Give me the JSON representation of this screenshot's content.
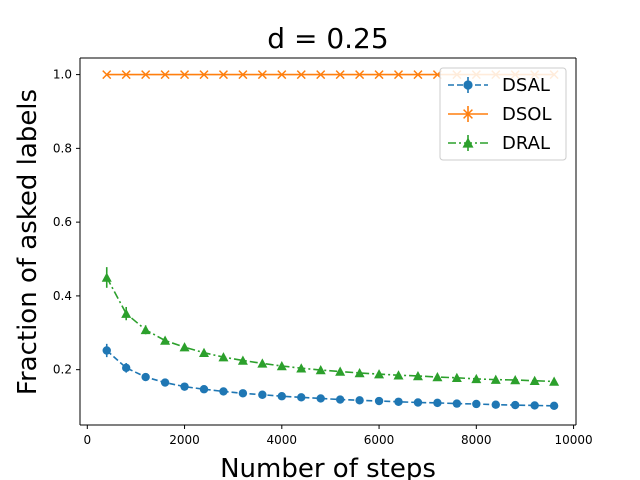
{
  "chart_data": {
    "type": "line",
    "title": "d = 0.25",
    "xlabel": "Number of steps",
    "ylabel": "Fraction of asked labels",
    "xlim": [
      -150,
      10050
    ],
    "ylim": [
      0.05,
      1.045
    ],
    "x_ticks": [
      0,
      2000,
      4000,
      6000,
      8000,
      10000
    ],
    "x_tick_labels": [
      "0",
      "2000",
      "4000",
      "6000",
      "8000",
      "10000"
    ],
    "y_ticks": [
      0.2,
      0.4,
      0.6,
      0.8,
      1.0
    ],
    "y_tick_labels": [
      "0.2",
      "0.4",
      "0.6",
      "0.8",
      "1.0"
    ],
    "grid": false,
    "legend_position": "top-right",
    "x": [
      400,
      800,
      1200,
      1600,
      2000,
      2400,
      2800,
      3200,
      3600,
      4000,
      4400,
      4800,
      5200,
      5600,
      6000,
      6400,
      6800,
      7200,
      7600,
      8000,
      8400,
      8800,
      9200,
      9600
    ],
    "series": [
      {
        "name": "DSAL",
        "color": "#1f77b4",
        "linestyle": "dashed",
        "marker": "circle",
        "values": [
          0.252,
          0.205,
          0.18,
          0.165,
          0.154,
          0.147,
          0.141,
          0.136,
          0.132,
          0.128,
          0.125,
          0.122,
          0.119,
          0.117,
          0.115,
          0.113,
          0.111,
          0.11,
          0.108,
          0.107,
          0.105,
          0.104,
          0.103,
          0.102
        ],
        "errors": [
          0.018,
          0.013,
          0.008,
          0.006,
          0.005,
          0.004,
          0.003,
          0.003,
          0.003,
          0.002,
          0.002,
          0.002,
          0.002,
          0.002,
          0.002,
          0.002,
          0.002,
          0.002,
          0.002,
          0.002,
          0.002,
          0.002,
          0.002,
          0.002
        ]
      },
      {
        "name": "DSOL",
        "color": "#ff7f0e",
        "linestyle": "solid",
        "marker": "x",
        "values": [
          1.0,
          1.0,
          1.0,
          1.0,
          1.0,
          1.0,
          1.0,
          1.0,
          1.0,
          1.0,
          1.0,
          1.0,
          1.0,
          1.0,
          1.0,
          1.0,
          1.0,
          1.0,
          1.0,
          1.0,
          1.0,
          1.0,
          1.0,
          1.0
        ],
        "errors": [
          0,
          0,
          0,
          0,
          0,
          0,
          0,
          0,
          0,
          0,
          0,
          0,
          0,
          0,
          0,
          0,
          0,
          0,
          0,
          0,
          0,
          0,
          0,
          0
        ]
      },
      {
        "name": "DRAL",
        "color": "#2ca02c",
        "linestyle": "dashdot",
        "marker": "triangle",
        "values": [
          0.45,
          0.352,
          0.308,
          0.279,
          0.261,
          0.246,
          0.234,
          0.225,
          0.217,
          0.21,
          0.204,
          0.199,
          0.195,
          0.191,
          0.188,
          0.185,
          0.183,
          0.18,
          0.178,
          0.175,
          0.173,
          0.172,
          0.17,
          0.168
        ],
        "errors": [
          0.028,
          0.018,
          0.012,
          0.009,
          0.007,
          0.006,
          0.005,
          0.004,
          0.004,
          0.003,
          0.003,
          0.003,
          0.003,
          0.003,
          0.003,
          0.003,
          0.003,
          0.003,
          0.003,
          0.003,
          0.003,
          0.003,
          0.003,
          0.003
        ]
      }
    ]
  }
}
